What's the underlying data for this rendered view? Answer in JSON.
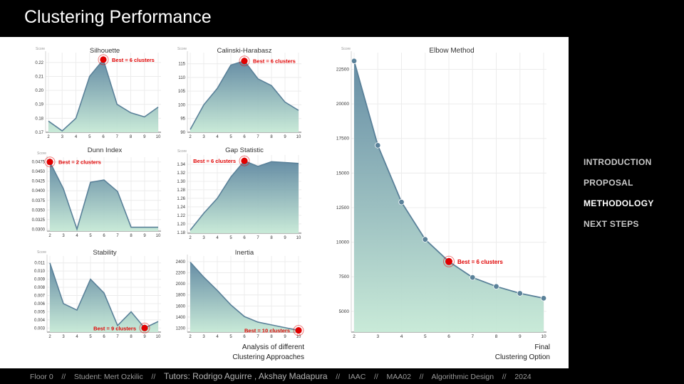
{
  "slide": {
    "title": "Clustering Performance",
    "nav": [
      "INTRODUCTION",
      "PROPOSAL",
      "METHODOLOGY",
      "NEXT STEPS"
    ],
    "nav_active": 2,
    "caption_left": [
      "Analysis of different",
      "Clustering Approaches"
    ],
    "caption_right": [
      "Final",
      "Clustering Option"
    ],
    "footer": {
      "floor": "Floor 0",
      "student": "Student: Mert Ozkilic",
      "tutors": "Tutors: Rodrigo Aguirre , Akshay Madapura",
      "school": "IAAC",
      "program": "MAA02",
      "course": "Algorithmic Design",
      "year": "2024",
      "sep": "//"
    }
  },
  "colors": {
    "line": "#5a8199",
    "fill_top": "#5e87a0",
    "fill_bottom": "#c6e9d6",
    "highlight": "#e00000",
    "label": "#e00000"
  },
  "chart_data": [
    {
      "id": "silhouette",
      "type": "area",
      "title": "Silhouette",
      "ylabel": "Score",
      "x": [
        2,
        3,
        4,
        5,
        6,
        7,
        8,
        9,
        10
      ],
      "values": [
        0.178,
        0.171,
        0.18,
        0.21,
        0.222,
        0.19,
        0.184,
        0.181,
        0.188
      ],
      "ylim": [
        0.17,
        0.225
      ],
      "yticks": [
        0.17,
        0.18,
        0.19,
        0.2,
        0.21,
        0.22
      ],
      "ytick_labels": [
        "0.17",
        "0.18",
        "0.19",
        "0.20",
        "0.21",
        "0.22"
      ],
      "highlight_index": 4,
      "highlight_label": "Best = 6 clusters",
      "label_side": "right"
    },
    {
      "id": "calinski",
      "type": "area",
      "title": "Calinski-Harabasz",
      "ylabel": "Score",
      "x": [
        2,
        3,
        4,
        5,
        6,
        7,
        8,
        9,
        10
      ],
      "values": [
        91,
        100,
        106,
        114.5,
        116,
        109.5,
        107,
        101,
        98
      ],
      "ylim": [
        90,
        118
      ],
      "yticks": [
        90,
        95,
        100,
        105,
        110,
        115
      ],
      "ytick_labels": [
        "90",
        "95",
        "100",
        "105",
        "110",
        "115"
      ],
      "highlight_index": 4,
      "highlight_label": "Best = 6 clusters",
      "label_side": "right"
    },
    {
      "id": "dunn",
      "type": "area",
      "title": "Dunn Index",
      "ylabel": "Score",
      "x": [
        2,
        3,
        4,
        5,
        6,
        7,
        8,
        9,
        10
      ],
      "values": [
        0.0475,
        0.0405,
        0.03,
        0.0422,
        0.0428,
        0.0398,
        0.0305,
        0.0305,
        0.0305
      ],
      "ylim": [
        0.0295,
        0.048
      ],
      "yticks": [
        0.03,
        0.0325,
        0.035,
        0.0375,
        0.04,
        0.0425,
        0.045,
        0.0475
      ],
      "ytick_labels": [
        "0.0300",
        "0.0325",
        "0.0350",
        "0.0375",
        "0.0400",
        "0.0425",
        "0.0450",
        "0.0475"
      ],
      "highlight_index": 0,
      "highlight_label": "Best = 2 clusters",
      "label_side": "right"
    },
    {
      "id": "gap",
      "type": "area",
      "title": "Gap Statistic",
      "ylabel": "Score",
      "x": [
        2,
        3,
        4,
        5,
        6,
        7,
        8,
        9,
        10
      ],
      "values": [
        1.185,
        1.225,
        1.26,
        1.31,
        1.348,
        1.335,
        1.346,
        1.344,
        1.342
      ],
      "ylim": [
        1.178,
        1.355
      ],
      "yticks": [
        1.18,
        1.2,
        1.22,
        1.24,
        1.26,
        1.28,
        1.3,
        1.32,
        1.34
      ],
      "ytick_labels": [
        "1.18",
        "1.20",
        "1.22",
        "1.24",
        "1.26",
        "1.28",
        "1.30",
        "1.32",
        "1.34"
      ],
      "highlight_index": 4,
      "highlight_label": "Best = 6 clusters",
      "label_side": "left"
    },
    {
      "id": "stability",
      "type": "area",
      "title": "Stability",
      "ylabel": "Score",
      "x": [
        2,
        3,
        4,
        5,
        6,
        7,
        8,
        9,
        10
      ],
      "values": [
        0.011,
        0.006,
        0.0052,
        0.009,
        0.0073,
        0.0033,
        0.005,
        0.003,
        0.0038
      ],
      "ylim": [
        0.0025,
        0.0115
      ],
      "yticks": [
        0.003,
        0.004,
        0.005,
        0.006,
        0.007,
        0.008,
        0.009,
        0.01,
        0.011
      ],
      "ytick_labels": [
        "0.003",
        "0.004",
        "0.005",
        "0.006",
        "0.007",
        "0.008",
        "0.009",
        "0.010",
        "0.011"
      ],
      "highlight_index": 7,
      "highlight_label": "Best = 9 clusters",
      "label_side": "left"
    },
    {
      "id": "inertia",
      "type": "area",
      "title": "Inertia",
      "ylabel": "",
      "x": [
        2,
        3,
        4,
        5,
        6,
        7,
        8,
        9,
        10
      ],
      "values": [
        2390,
        2120,
        1880,
        1620,
        1410,
        1310,
        1260,
        1210,
        1160
      ],
      "ylim": [
        1130,
        2450
      ],
      "yticks": [
        1200,
        1400,
        1600,
        1800,
        2000,
        2200,
        2400
      ],
      "ytick_labels": [
        "1200",
        "1400",
        "1600",
        "1800",
        "2000",
        "2200",
        "2400"
      ],
      "highlight_index": 8,
      "highlight_label": "Best = 10 clusters",
      "label_side": "left"
    },
    {
      "id": "elbow",
      "type": "area",
      "title": "Elbow Method",
      "ylabel": "Score",
      "x": [
        2,
        3,
        4,
        5,
        6,
        7,
        8,
        9,
        10
      ],
      "values": [
        23100,
        17000,
        12900,
        10200,
        8600,
        7450,
        6800,
        6300,
        5950
      ],
      "ylim": [
        3500,
        23500
      ],
      "yticks": [
        5000,
        7500,
        10000,
        12500,
        15000,
        17500,
        20000,
        22500
      ],
      "ytick_labels": [
        "5000",
        "7500",
        "10000",
        "12500",
        "15000",
        "17500",
        "20000",
        "22500"
      ],
      "highlight_index": 4,
      "highlight_label": "Best = 6 clusters",
      "label_side": "right"
    }
  ]
}
